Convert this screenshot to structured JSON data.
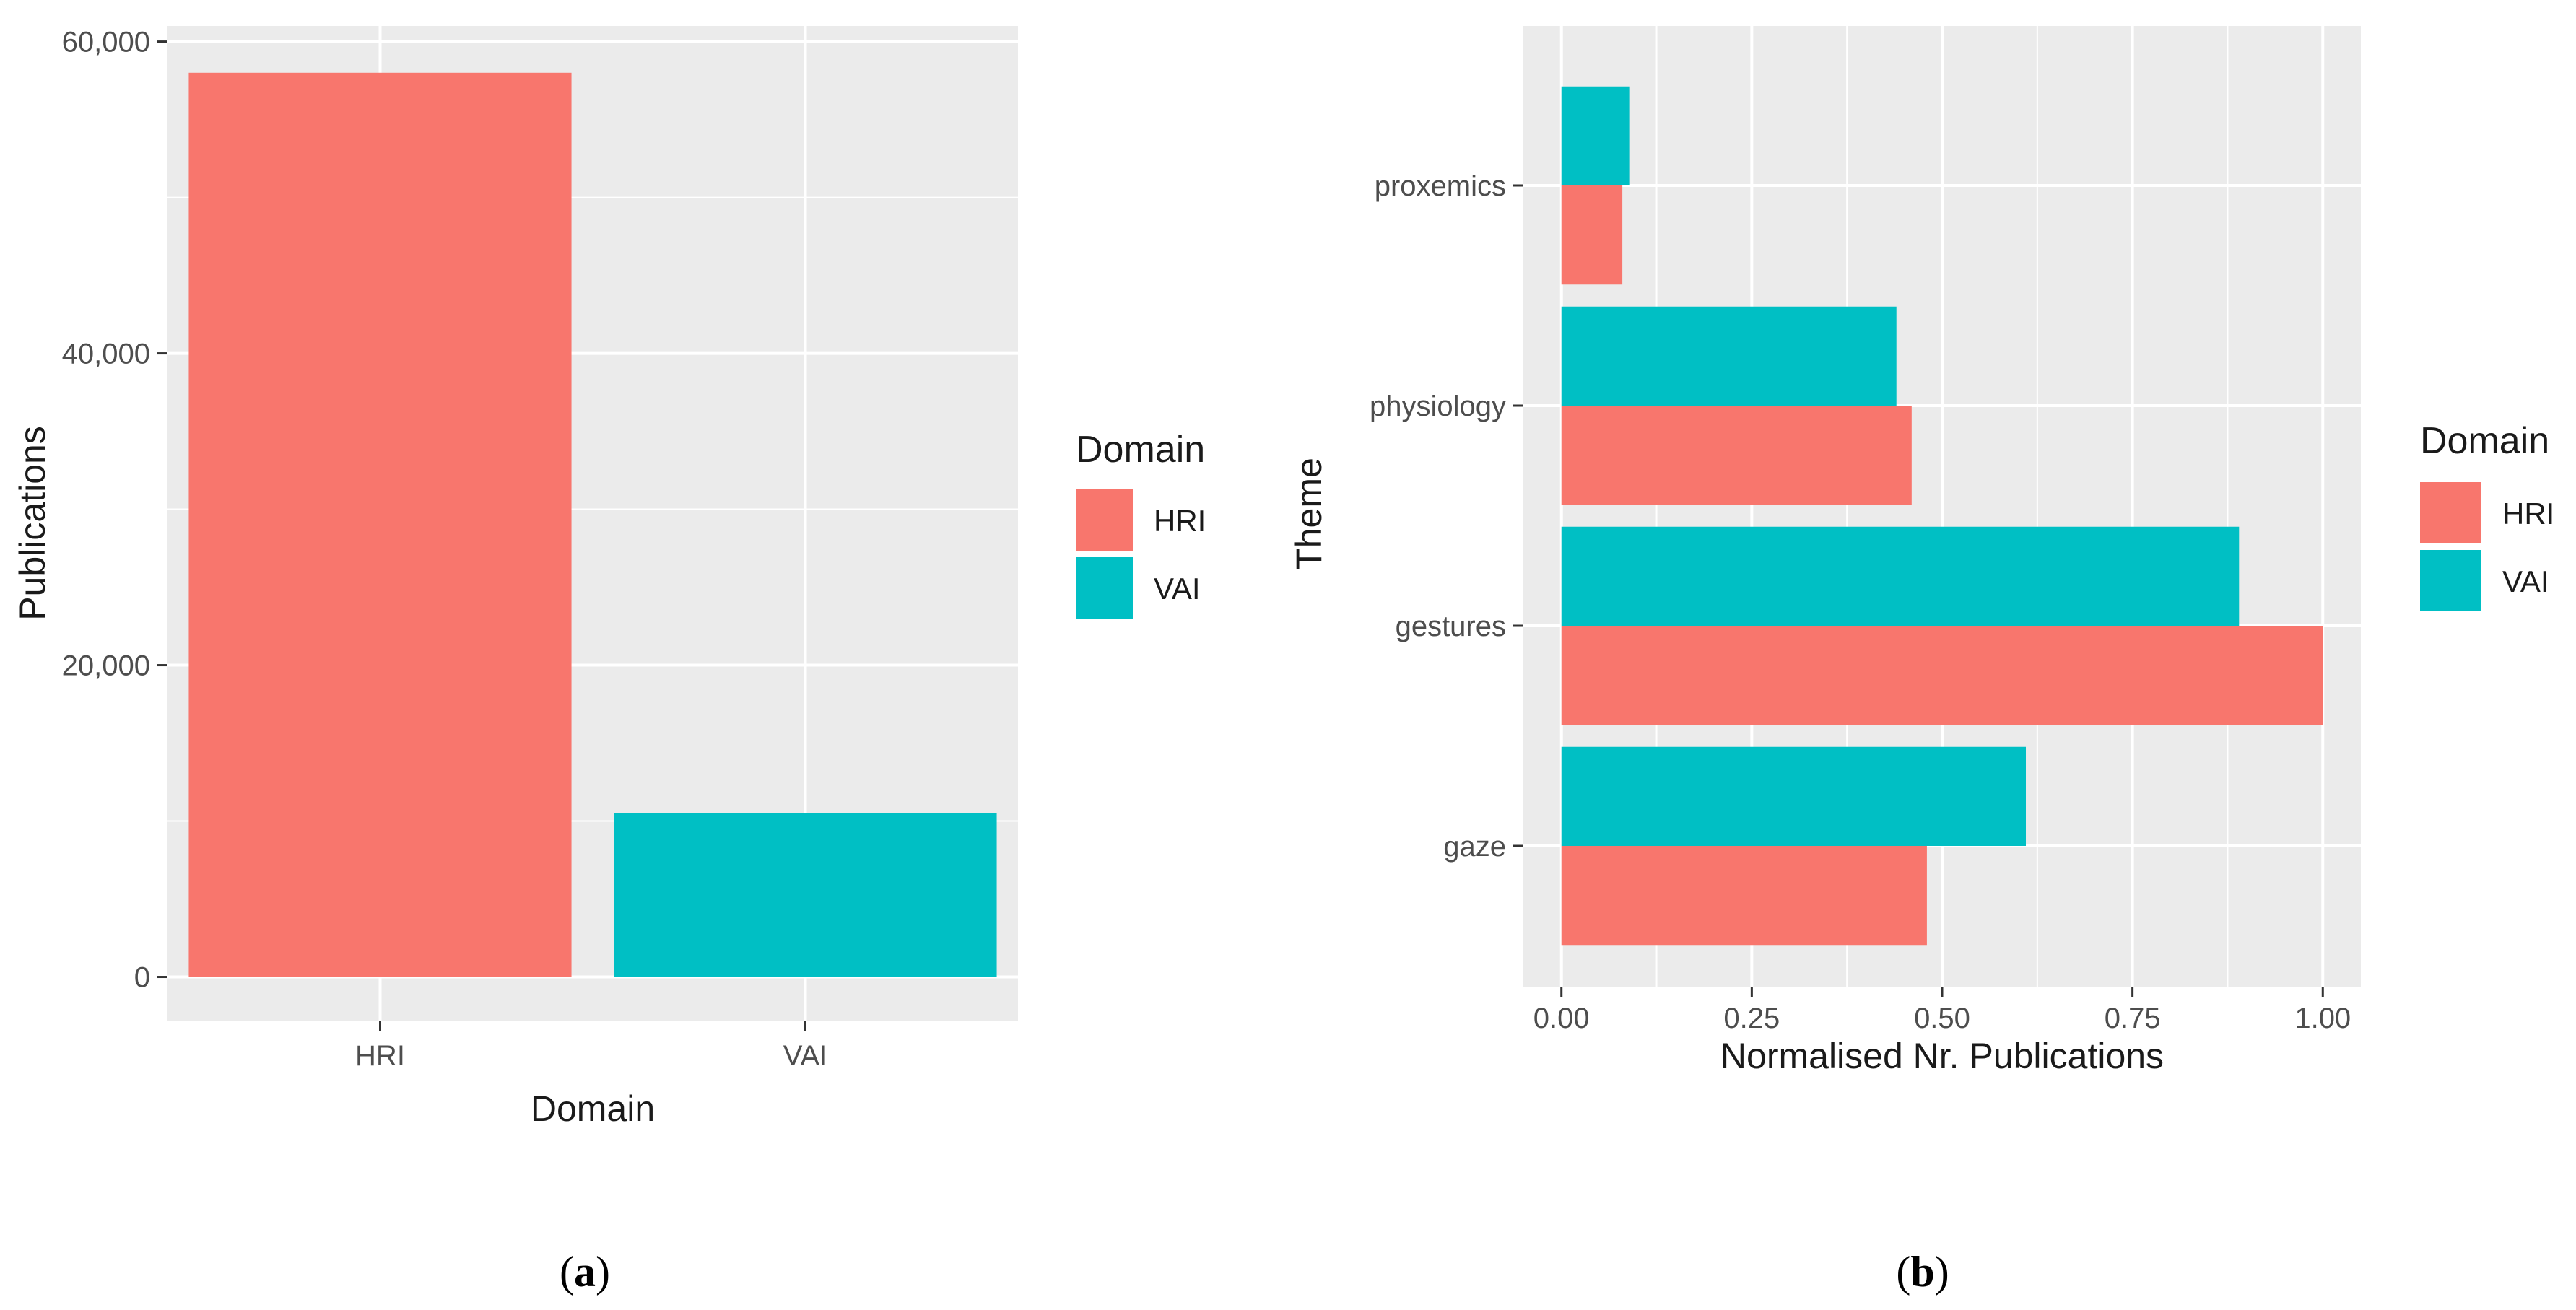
{
  "chart_data": [
    {
      "type": "bar",
      "orientation": "vertical",
      "panel_label": "a",
      "title": "",
      "xlabel": "Domain",
      "ylabel": "Publications",
      "categories": [
        "HRI",
        "VAI"
      ],
      "values": [
        58000,
        10500
      ],
      "colors": [
        "#F8766D",
        "#00BFC4"
      ],
      "ylim": [
        -2800,
        61000
      ],
      "yticks": [
        0,
        20000,
        40000,
        60000
      ],
      "ytick_labels": [
        "0",
        "20,000",
        "40,000",
        "60,000"
      ],
      "grid": true,
      "legend": {
        "title": "Domain",
        "position": "right",
        "entries": [
          {
            "label": "HRI",
            "color": "#F8766D"
          },
          {
            "label": "VAI",
            "color": "#00BFC4"
          }
        ]
      }
    },
    {
      "type": "bar",
      "orientation": "horizontal",
      "panel_label": "b",
      "title": "",
      "xlabel": "Normalised Nr. Publications",
      "ylabel": "Theme",
      "categories": [
        "gaze",
        "gestures",
        "physiology",
        "proxemics"
      ],
      "series": [
        {
          "name": "HRI",
          "color": "#F8766D",
          "values": [
            0.48,
            1.0,
            0.46,
            0.08
          ]
        },
        {
          "name": "VAI",
          "color": "#00BFC4",
          "values": [
            0.61,
            0.89,
            0.44,
            0.09
          ]
        }
      ],
      "xlim": [
        -0.05,
        1.05
      ],
      "xticks": [
        0,
        0.25,
        0.5,
        0.75,
        1.0
      ],
      "xtick_labels": [
        "0.00",
        "0.25",
        "0.50",
        "0.75",
        "1.00"
      ],
      "grid": true,
      "legend": {
        "title": "Domain",
        "position": "right",
        "entries": [
          {
            "label": "HRI",
            "color": "#F8766D"
          },
          {
            "label": "VAI",
            "color": "#00BFC4"
          }
        ]
      }
    }
  ]
}
